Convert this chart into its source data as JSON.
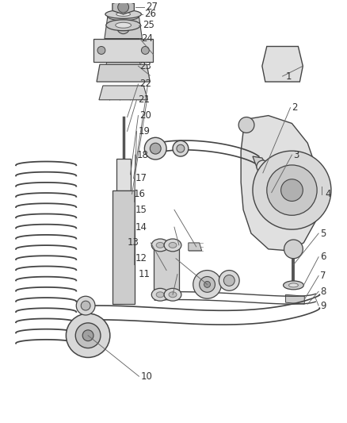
{
  "background_color": "#ffffff",
  "line_color": "#444444",
  "label_color": "#333333",
  "figure_width": 4.38,
  "figure_height": 5.33,
  "dpi": 100
}
